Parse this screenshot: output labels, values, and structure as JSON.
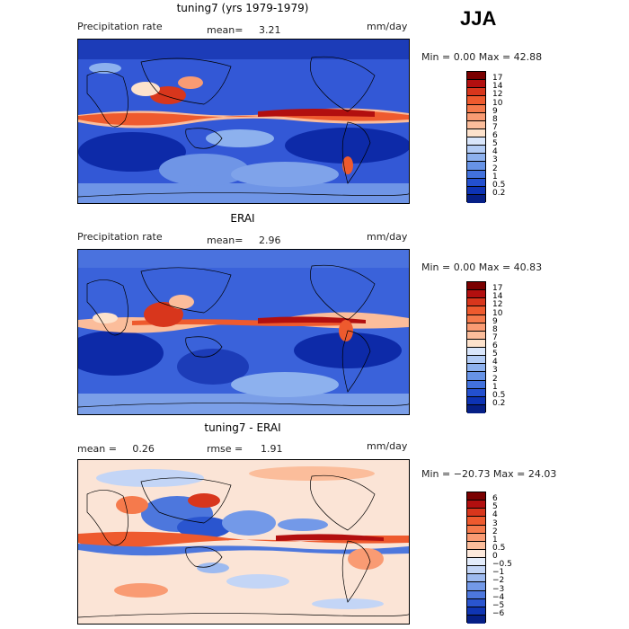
{
  "season": "JJA",
  "panels": [
    {
      "title": "tuning7 (yrs 1979-1979)",
      "left_label": "Precipitation rate",
      "center_label": "mean=",
      "center_value": "3.21",
      "units": "mm/day",
      "range_text": "Min =    0.00 Max =   42.88",
      "ticks": [
        "17",
        "14",
        "12",
        "10",
        "9",
        "8",
        "7",
        "6",
        "5",
        "4",
        "3",
        "2",
        "1",
        "0.5",
        "0.2"
      ],
      "colors": [
        "#7a0000",
        "#b20f0f",
        "#d8361c",
        "#ee5a2e",
        "#f57a4c",
        "#f99b73",
        "#fbbd9b",
        "#fde2cc",
        "#d9e6fb",
        "#b3ccf5",
        "#8db1ee",
        "#6793e6",
        "#4271dc",
        "#2350cf",
        "#0d33b4",
        "#061f86"
      ]
    },
    {
      "title": "ERAI",
      "left_label": "Precipitation rate",
      "center_label": "mean=",
      "center_value": "2.96",
      "units": "mm/day",
      "range_text": "Min =    0.00 Max =   40.83",
      "ticks": [
        "17",
        "14",
        "12",
        "10",
        "9",
        "8",
        "7",
        "6",
        "5",
        "4",
        "3",
        "2",
        "1",
        "0.5",
        "0.2"
      ],
      "colors": [
        "#7a0000",
        "#b20f0f",
        "#d8361c",
        "#ee5a2e",
        "#f57a4c",
        "#f99b73",
        "#fbbd9b",
        "#fde2cc",
        "#d9e6fb",
        "#b3ccf5",
        "#8db1ee",
        "#6793e6",
        "#4271dc",
        "#2350cf",
        "#0d33b4",
        "#061f86"
      ]
    },
    {
      "title": "tuning7 - ERAI",
      "left_label": "mean =     0.26",
      "center_label": "rmse =",
      "center_value": "1.91",
      "units": "mm/day",
      "range_text": "Min = −20.73 Max =   24.03",
      "ticks": [
        "6",
        "5",
        "4",
        "3",
        "2",
        "1",
        "0.5",
        "0",
        "−0.5",
        "−1",
        "−2",
        "−3",
        "−4",
        "−5",
        "−6"
      ],
      "colors": [
        "#7a0000",
        "#b20f0f",
        "#d8361c",
        "#ee5a2e",
        "#f57a4c",
        "#f99b73",
        "#fbbd9b",
        "#fde9dc",
        "#e3ecfb",
        "#c3d5f6",
        "#9dbaf0",
        "#7399e8",
        "#4d77dd",
        "#2a55cf",
        "#0f35b3",
        "#051f86"
      ]
    }
  ]
}
